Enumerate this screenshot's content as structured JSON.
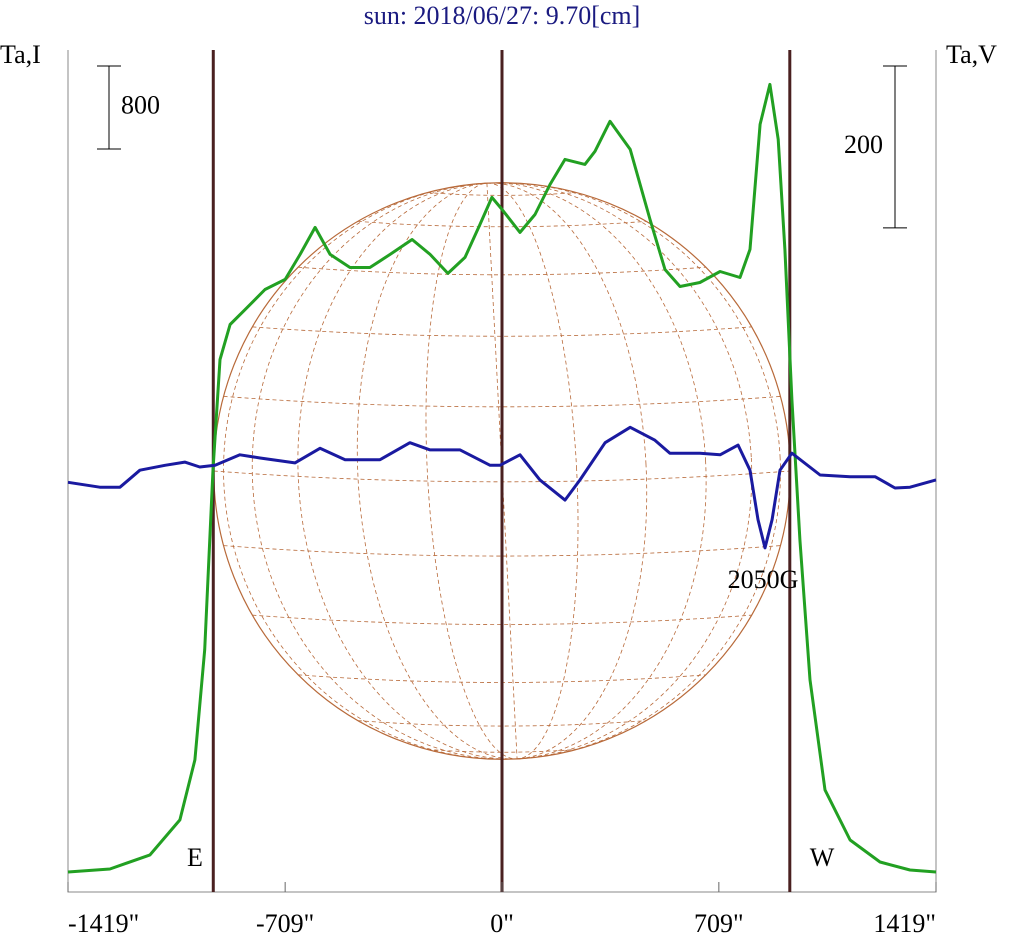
{
  "chart_data": {
    "type": "line",
    "title": "sun: 2018/06/27: 9.70[cm]",
    "ylabel": "Ta,I",
    "y2label": "Ta,V",
    "xlim": [
      -1419,
      1419
    ],
    "xticks": [
      {
        "value": -1419,
        "label": "-1419\""
      },
      {
        "value": -709,
        "label": "-709\""
      },
      {
        "value": 0,
        "label": "0\""
      },
      {
        "value": 709,
        "label": "709\""
      },
      {
        "value": 1419,
        "label": "1419\""
      }
    ],
    "ylim": [
      0,
      8110
    ],
    "y2lim": [
      -520,
      520
    ],
    "scale_bars": [
      {
        "label": "800",
        "value": 800,
        "axis": "y"
      },
      {
        "label": "200",
        "value": 200,
        "axis": "y2"
      }
    ],
    "limb_lines": [
      -944,
      941
    ],
    "annotations": [
      "E",
      "W",
      "2050G"
    ],
    "series": [
      {
        "name": "Ta,I",
        "color": "#22a022",
        "x": [
          -1419,
          -1282,
          -1151,
          -1053,
          -1004,
          -972,
          -945,
          -922,
          -889,
          -840,
          -775,
          -709,
          -660,
          -611,
          -562,
          -497,
          -432,
          -366,
          -294,
          -235,
          -177,
          -121,
          -72,
          -33,
          0,
          59,
          108,
          157,
          206,
          271,
          304,
          353,
          419,
          484,
          533,
          582,
          647,
          713,
          778,
          811,
          844,
          876,
          903,
          925,
          948,
          974,
          1007,
          1056,
          1138,
          1236,
          1334,
          1419
        ],
        "values": [
          193,
          222,
          357,
          694,
          1272,
          2333,
          4068,
          5128,
          5466,
          5610,
          5803,
          5900,
          6141,
          6401,
          6141,
          6015,
          6015,
          6141,
          6285,
          6141,
          5958,
          6112,
          6430,
          6690,
          6575,
          6353,
          6526,
          6815,
          7056,
          7008,
          7134,
          7423,
          7153,
          6478,
          5996,
          5832,
          5871,
          5977,
          5919,
          6189,
          7394,
          7779,
          7249,
          6189,
          4743,
          3393,
          2044,
          983,
          501,
          289,
          212,
          193
        ]
      },
      {
        "name": "Ta,V",
        "color": "#1a1aa0",
        "axis": "y2",
        "x": [
          -1419,
          -1315,
          -1249,
          -1184,
          -1102,
          -1037,
          -988,
          -938,
          -857,
          -791,
          -677,
          -595,
          -513,
          -399,
          -301,
          -235,
          -137,
          -39,
          -7,
          59,
          124,
          206,
          255,
          337,
          419,
          500,
          549,
          647,
          713,
          772,
          811,
          837,
          860,
          883,
          909,
          948,
          1040,
          1138,
          1220,
          1285,
          1334,
          1419
        ],
        "values": [
          -14,
          -20,
          -20,
          1,
          7,
          11,
          5,
          7,
          20,
          16,
          10,
          28,
          14,
          14,
          35,
          26,
          26,
          7,
          7,
          20,
          -11,
          -36,
          -11,
          35,
          54,
          38,
          22,
          22,
          20,
          32,
          1,
          -60,
          -95,
          -60,
          1,
          22,
          -5,
          -7,
          -7,
          -21,
          -20,
          -11
        ]
      }
    ]
  }
}
